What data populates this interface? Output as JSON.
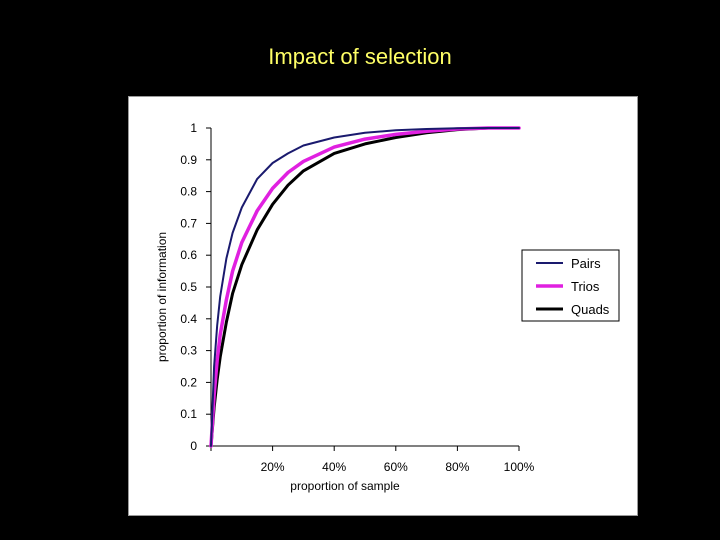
{
  "slide": {
    "title": "Impact of selection"
  },
  "colors": {
    "background": "#000000",
    "title": "#ffff66",
    "panel": "#ffffff",
    "pairs": "#1a1a6e",
    "trios": "#e020e0",
    "quads": "#000000"
  },
  "chart_data": {
    "type": "line",
    "title": "",
    "xlabel": "proportion of sample",
    "ylabel": "proportion of information",
    "xlim": [
      0,
      100
    ],
    "ylim": [
      0,
      1
    ],
    "x_ticks": [
      {
        "value": 20,
        "label": "20%"
      },
      {
        "value": 40,
        "label": "40%"
      },
      {
        "value": 60,
        "label": "60%"
      },
      {
        "value": 80,
        "label": "80%"
      },
      {
        "value": 100,
        "label": "100%"
      }
    ],
    "y_ticks": [
      {
        "value": 0,
        "label": "0"
      },
      {
        "value": 0.1,
        "label": "0.1"
      },
      {
        "value": 0.2,
        "label": "0.2"
      },
      {
        "value": 0.3,
        "label": "0.3"
      },
      {
        "value": 0.4,
        "label": "0.4"
      },
      {
        "value": 0.5,
        "label": "0.5"
      },
      {
        "value": 0.6,
        "label": "0.6"
      },
      {
        "value": 0.7,
        "label": "0.7"
      },
      {
        "value": 0.8,
        "label": "0.8"
      },
      {
        "value": 0.9,
        "label": "0.9"
      },
      {
        "value": 1,
        "label": "1"
      }
    ],
    "grid": false,
    "legend_position": "right",
    "series": [
      {
        "name": "Pairs",
        "color": "#1a1a6e",
        "x": [
          0,
          1,
          2,
          3,
          5,
          7,
          10,
          15,
          20,
          25,
          30,
          40,
          50,
          60,
          70,
          80,
          90,
          100
        ],
        "values": [
          0,
          0.25,
          0.38,
          0.47,
          0.59,
          0.67,
          0.75,
          0.84,
          0.89,
          0.92,
          0.945,
          0.97,
          0.985,
          0.993,
          0.997,
          0.999,
          1.0,
          1.0
        ]
      },
      {
        "name": "Trios",
        "color": "#e020e0",
        "x": [
          0,
          1,
          2,
          3,
          5,
          7,
          10,
          15,
          20,
          25,
          30,
          40,
          50,
          60,
          70,
          80,
          90,
          100
        ],
        "values": [
          0,
          0.16,
          0.27,
          0.35,
          0.46,
          0.55,
          0.64,
          0.74,
          0.81,
          0.86,
          0.895,
          0.94,
          0.965,
          0.98,
          0.99,
          0.997,
          1.0,
          1.0
        ]
      },
      {
        "name": "Quads",
        "color": "#000000",
        "x": [
          0,
          1,
          2,
          3,
          5,
          7,
          10,
          15,
          20,
          25,
          30,
          40,
          50,
          60,
          70,
          80,
          90,
          100
        ],
        "values": [
          0,
          0.12,
          0.21,
          0.28,
          0.39,
          0.48,
          0.57,
          0.68,
          0.76,
          0.82,
          0.865,
          0.92,
          0.95,
          0.97,
          0.985,
          0.995,
          1.0,
          1.0
        ]
      }
    ]
  }
}
